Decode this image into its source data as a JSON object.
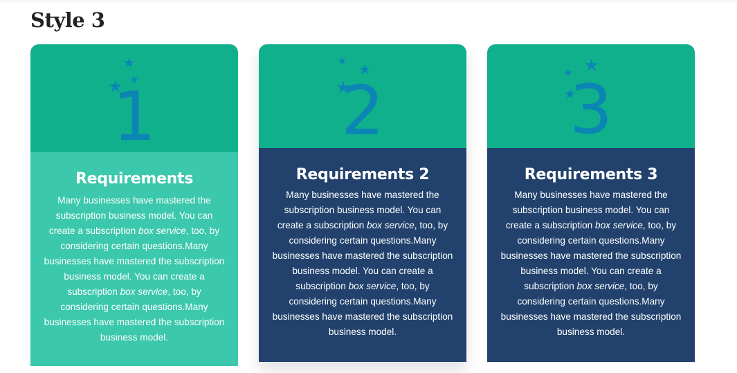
{
  "section": {
    "title": "Style 3"
  },
  "cards": [
    {
      "number": "1",
      "title": "Requirements",
      "body": [
        "Many businesses have mastered the subscription business model. You can create a subscription ",
        "box service",
        ", too, by considering certain questions.Many businesses have mastered the subscription business model. You can create a subscription ",
        "box service",
        ", too, by considering certain questions.Many businesses have mastered the subscription business model."
      ]
    },
    {
      "number": "2",
      "title": "Requirements 2",
      "body": [
        "Many businesses have mastered the subscription business model. You can create a subscription ",
        "box service",
        ", too, by considering certain questions.Many businesses have mastered the subscription business model. You can create a subscription ",
        "box service",
        ", too, by considering certain questions.Many businesses have mastered the subscription business model."
      ]
    },
    {
      "number": "3",
      "title": "Requirements 3",
      "body": [
        "Many businesses have mastered the subscription business model. You can create a subscription ",
        "box service",
        ", too, by considering certain questions.Many businesses have mastered the subscription business model. You can create a subscription ",
        "box service",
        ", too, by considering certain questions.Many businesses have mastered the subscription business model."
      ]
    }
  ],
  "icons": {
    "star": "star-icon"
  },
  "colors": {
    "header_green": "#10b08c",
    "light_teal": "#3cc8ac",
    "navy": "#22426d",
    "number_blue": "#0b86b4"
  }
}
